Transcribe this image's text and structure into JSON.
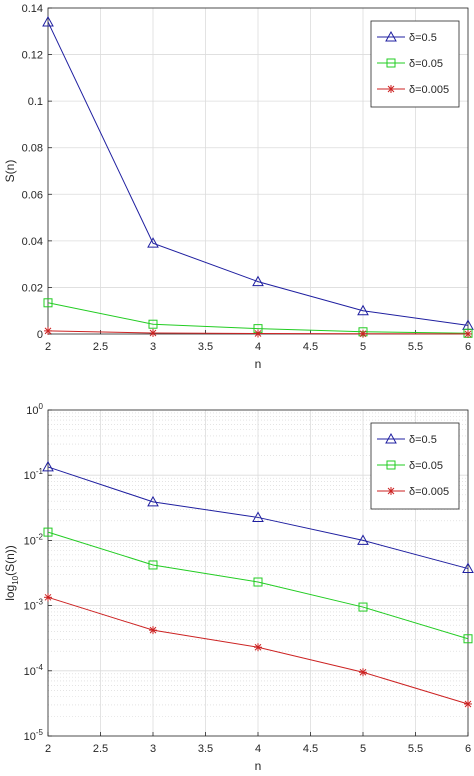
{
  "chart_data": [
    {
      "type": "line",
      "xlabel": "n",
      "ylabel": "S(n)",
      "xlim": [
        2,
        6
      ],
      "ylim": [
        0,
        0.14
      ],
      "grid": true,
      "legend_position": "top-right",
      "x": [
        2,
        3,
        4,
        5,
        6
      ],
      "xticks": [
        "2",
        "2.5",
        "3",
        "3.5",
        "4",
        "4.5",
        "5",
        "5.5",
        "6"
      ],
      "yticks": [
        "0",
        "0.02",
        "0.04",
        "0.06",
        "0.08",
        "0.1",
        "0.12",
        "0.14"
      ],
      "series": [
        {
          "name": "δ=0.5",
          "color": "#1f1fa0",
          "marker": "triangle",
          "values": [
            0.134,
            0.039,
            0.0225,
            0.01,
            0.0037
          ]
        },
        {
          "name": "δ=0.05",
          "color": "#22cc22",
          "marker": "square",
          "values": [
            0.0134,
            0.0042,
            0.0023,
            0.00095,
            0.00031
          ]
        },
        {
          "name": "δ=0.005",
          "color": "#cc2222",
          "marker": "star",
          "values": [
            0.00134,
            0.00042,
            0.00023,
            9.5e-05,
            3.1e-05
          ]
        }
      ]
    },
    {
      "type": "line",
      "xlabel": "n",
      "ylabel": "log10(S(n))",
      "yscale": "log",
      "xlim": [
        2,
        6
      ],
      "ylim": [
        1e-05,
        1
      ],
      "grid": true,
      "legend_position": "top-right",
      "x": [
        2,
        3,
        4,
        5,
        6
      ],
      "xticks": [
        "2",
        "2.5",
        "3",
        "3.5",
        "4",
        "4.5",
        "5",
        "5.5",
        "6"
      ],
      "yticks": [
        "10-5",
        "10-4",
        "10-3",
        "10-2",
        "10-1",
        "100"
      ],
      "series": [
        {
          "name": "δ=0.5",
          "color": "#1f1fa0",
          "marker": "triangle",
          "values": [
            0.134,
            0.039,
            0.0225,
            0.01,
            0.0037
          ]
        },
        {
          "name": "δ=0.05",
          "color": "#22cc22",
          "marker": "square",
          "values": [
            0.0134,
            0.0042,
            0.0023,
            0.00095,
            0.00031
          ]
        },
        {
          "name": "δ=0.005",
          "color": "#cc2222",
          "marker": "star",
          "values": [
            0.00134,
            0.00042,
            0.00023,
            9.5e-05,
            3.1e-05
          ]
        }
      ]
    }
  ]
}
